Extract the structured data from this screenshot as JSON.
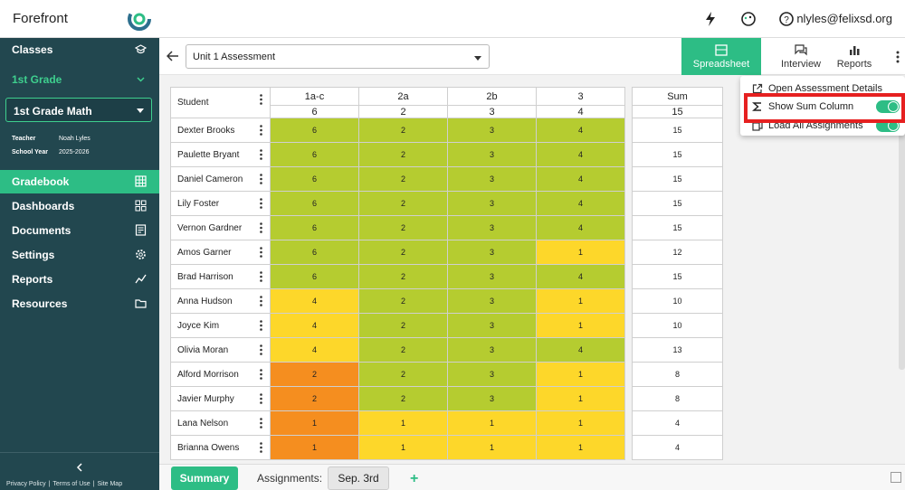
{
  "topbar": {
    "brand": "Forefront",
    "user_email": "nlyles@felixsd.org",
    "icons": [
      "lightning-icon",
      "palette-icon",
      "help-icon"
    ]
  },
  "sidebar": {
    "classes_label": "Classes",
    "grade_label": "1st Grade",
    "class_select": "1st Grade Math",
    "teacher_label": "Teacher",
    "teacher_value": "Noah Lyles",
    "year_label": "School Year",
    "year_value": "2025-2026",
    "nav": [
      {
        "label": "Gradebook",
        "icon": "grid-icon"
      },
      {
        "label": "Dashboards",
        "icon": "dashboard-icon"
      },
      {
        "label": "Documents",
        "icon": "document-icon"
      },
      {
        "label": "Settings",
        "icon": "gear-icon"
      },
      {
        "label": "Reports",
        "icon": "trend-icon"
      },
      {
        "label": "Resources",
        "icon": "folder-icon"
      }
    ],
    "footer": [
      "Privacy Policy",
      "Terms of Use",
      "Site Map"
    ]
  },
  "header": {
    "assessment": "Unit 1 Assessment",
    "tabs": [
      "Spreadsheet",
      "Interview",
      "Reports"
    ]
  },
  "grid": {
    "student_header": "Student",
    "columns": [
      {
        "label": "1a-c",
        "points": "6"
      },
      {
        "label": "2a",
        "points": "2"
      },
      {
        "label": "2b",
        "points": "3"
      },
      {
        "label": "3",
        "points": "4"
      }
    ],
    "sum_header": "Sum",
    "sum_points": "15",
    "rows": [
      {
        "name": "Dexter Brooks",
        "scores": [
          "6",
          "2",
          "3",
          "4"
        ],
        "colors": [
          "g",
          "g",
          "g",
          "g"
        ],
        "sum": "15"
      },
      {
        "name": "Paulette Bryant",
        "scores": [
          "6",
          "2",
          "3",
          "4"
        ],
        "colors": [
          "g",
          "g",
          "g",
          "g"
        ],
        "sum": "15"
      },
      {
        "name": "Daniel Cameron",
        "scores": [
          "6",
          "2",
          "3",
          "4"
        ],
        "colors": [
          "g",
          "g",
          "g",
          "g"
        ],
        "sum": "15"
      },
      {
        "name": "Lily Foster",
        "scores": [
          "6",
          "2",
          "3",
          "4"
        ],
        "colors": [
          "g",
          "g",
          "g",
          "g"
        ],
        "sum": "15"
      },
      {
        "name": "Vernon Gardner",
        "scores": [
          "6",
          "2",
          "3",
          "4"
        ],
        "colors": [
          "g",
          "g",
          "g",
          "g"
        ],
        "sum": "15"
      },
      {
        "name": "Amos Garner",
        "scores": [
          "6",
          "2",
          "3",
          "1"
        ],
        "colors": [
          "g",
          "g",
          "g",
          "y"
        ],
        "sum": "12"
      },
      {
        "name": "Brad Harrison",
        "scores": [
          "6",
          "2",
          "3",
          "4"
        ],
        "colors": [
          "g",
          "g",
          "g",
          "g"
        ],
        "sum": "15"
      },
      {
        "name": "Anna Hudson",
        "scores": [
          "4",
          "2",
          "3",
          "1"
        ],
        "colors": [
          "y",
          "g",
          "g",
          "y"
        ],
        "sum": "10"
      },
      {
        "name": "Joyce Kim",
        "scores": [
          "4",
          "2",
          "3",
          "1"
        ],
        "colors": [
          "y",
          "g",
          "g",
          "y"
        ],
        "sum": "10"
      },
      {
        "name": "Olivia Moran",
        "scores": [
          "4",
          "2",
          "3",
          "4"
        ],
        "colors": [
          "y",
          "g",
          "g",
          "g"
        ],
        "sum": "13"
      },
      {
        "name": "Alford Morrison",
        "scores": [
          "2",
          "2",
          "3",
          "1"
        ],
        "colors": [
          "o",
          "g",
          "g",
          "y"
        ],
        "sum": "8"
      },
      {
        "name": "Javier Murphy",
        "scores": [
          "2",
          "2",
          "3",
          "1"
        ],
        "colors": [
          "o",
          "g",
          "g",
          "y"
        ],
        "sum": "8"
      },
      {
        "name": "Lana Nelson",
        "scores": [
          "1",
          "1",
          "1",
          "1"
        ],
        "colors": [
          "o",
          "y",
          "y",
          "y"
        ],
        "sum": "4"
      },
      {
        "name": "Brianna Owens",
        "scores": [
          "1",
          "1",
          "1",
          "1"
        ],
        "colors": [
          "o",
          "y",
          "y",
          "y"
        ],
        "sum": "4"
      }
    ]
  },
  "colors": {
    "g": "#b5cc30",
    "y": "#fdd72a",
    "o": "#f58e1f",
    "accent": "#2dbd85",
    "sidebar": "#22474f"
  },
  "bottom": {
    "summary": "Summary",
    "assignments_label": "Assignments:",
    "day_tab": "Sep. 3rd",
    "add": "+"
  },
  "dropdown": {
    "items": [
      {
        "label": "Open Assessment Details",
        "icon": "external-link-icon",
        "toggle": false
      },
      {
        "label": "Show Sum Column",
        "icon": "sigma-icon",
        "toggle": true,
        "on": true
      },
      {
        "label": "Load All Assignments",
        "icon": "copy-icon",
        "toggle": true,
        "on": true
      }
    ]
  }
}
